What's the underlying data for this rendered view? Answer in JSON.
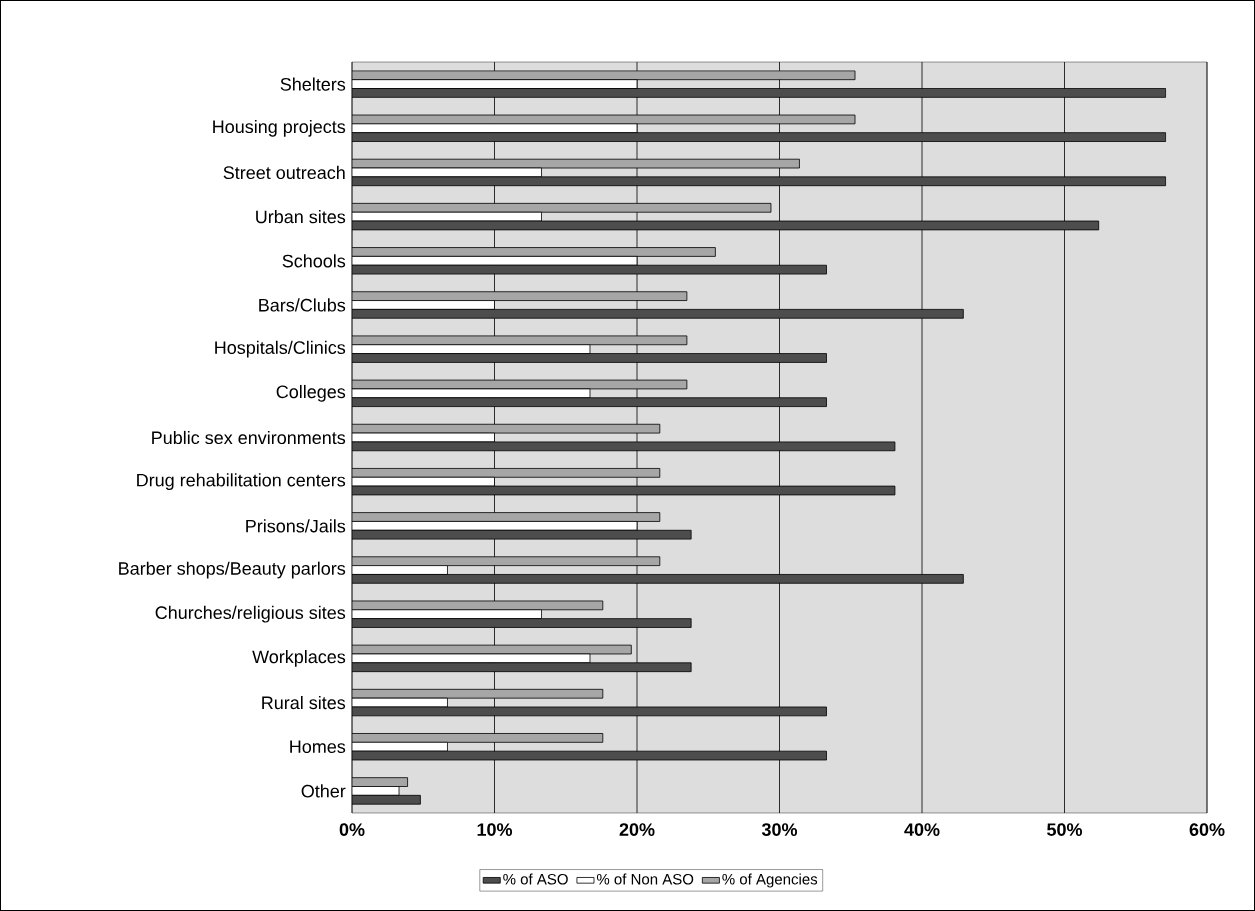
{
  "chart_data": {
    "type": "bar",
    "orientation": "horizontal",
    "categories": [
      "Shelters",
      "Housing projects",
      "Street outreach",
      "Urban sites",
      "Schools",
      "Bars/Clubs",
      "Hospitals/Clinics",
      "Colleges",
      "Public sex environments",
      "Drug rehabilitation centers",
      "Prisons/Jails",
      "Barber shops/Beauty parlors",
      "Churches/religious sites",
      "Workplaces",
      "Rural sites",
      "Homes",
      "Other"
    ],
    "series": [
      {
        "name": "% of ASO",
        "color": "#4d4d4d",
        "values": [
          57.1,
          57.1,
          57.1,
          52.4,
          33.3,
          42.9,
          33.3,
          33.3,
          38.1,
          38.1,
          23.8,
          42.9,
          23.8,
          23.8,
          33.3,
          33.3,
          4.8
        ]
      },
      {
        "name": "% of Non ASO",
        "color": "#ffffff",
        "values": [
          20,
          20,
          13.3,
          13.3,
          20,
          10,
          16.7,
          16.7,
          10,
          10,
          20,
          6.7,
          13.3,
          16.7,
          6.7,
          6.7,
          3.3
        ]
      },
      {
        "name": "% of Agencies",
        "color": "#a6a6a6",
        "values": [
          35.3,
          35.3,
          31.4,
          29.4,
          25.5,
          23.5,
          23.5,
          23.5,
          21.6,
          21.6,
          21.6,
          21.6,
          17.6,
          19.6,
          17.6,
          17.6,
          3.9
        ]
      }
    ],
    "xlim": [
      0,
      60
    ],
    "xticks": [
      {
        "value": 0,
        "label": "0%"
      },
      {
        "value": 10,
        "label": "10%"
      },
      {
        "value": 20,
        "label": "20%"
      },
      {
        "value": 30,
        "label": "30%"
      },
      {
        "value": 40,
        "label": "40%"
      },
      {
        "value": 50,
        "label": "50%"
      },
      {
        "value": 60,
        "label": "60%"
      }
    ],
    "grid": "x",
    "legend": "bottom"
  }
}
